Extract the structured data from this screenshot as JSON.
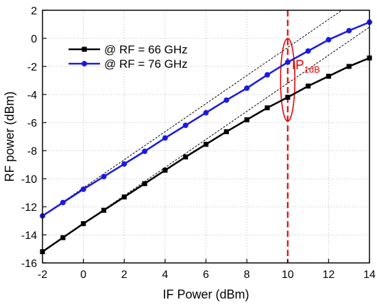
{
  "chart_data": {
    "type": "line",
    "title": "",
    "xlabel": "IF Power (dBm)",
    "ylabel": "RF power (dBm)",
    "xlim": [
      -2,
      14
    ],
    "ylim": [
      -16,
      2
    ],
    "xticks": [
      -2,
      0,
      2,
      4,
      6,
      8,
      10,
      12,
      14
    ],
    "yticks": [
      -16,
      -14,
      -12,
      -10,
      -8,
      -6,
      -4,
      -2,
      0,
      2
    ],
    "grid": true,
    "legend_position": "top-left",
    "x": [
      -2,
      -1,
      0,
      1,
      2,
      3,
      4,
      5,
      6,
      7,
      8,
      9,
      10,
      11,
      12,
      13,
      14
    ],
    "series": [
      {
        "name": "@ RF = 66 GHz",
        "color": "#000000",
        "marker": "square",
        "values": [
          -15.2,
          -14.2,
          -13.2,
          -12.25,
          -11.3,
          -10.35,
          -9.4,
          -8.45,
          -7.55,
          -6.65,
          -5.8,
          -4.95,
          -4.2,
          -3.4,
          -2.7,
          -2.0,
          -1.4
        ]
      },
      {
        "name": "@ RF = 76 GHz",
        "color": "#1a1ae6",
        "marker": "circle",
        "values": [
          -12.65,
          -11.7,
          -10.75,
          -9.85,
          -8.95,
          -8.05,
          -7.1,
          -6.2,
          -5.3,
          -4.4,
          -3.55,
          -2.6,
          -1.7,
          -0.9,
          -0.1,
          0.55,
          1.15
        ]
      }
    ],
    "reference_lines": [
      {
        "x1": -2,
        "y1": -15.2,
        "x2": 14,
        "y2": 0.8,
        "style": "dashed",
        "color": "#000000"
      },
      {
        "x1": -2,
        "y1": -12.65,
        "x2": 14,
        "y2": 3.35,
        "style": "dashed",
        "color": "#000000"
      }
    ],
    "annotations": {
      "vline_x": 10,
      "vline_color": "#e60000",
      "ellipse_center": [
        10,
        -2.95
      ],
      "ellipse_rx": 0.35,
      "ellipse_ry": 2.95,
      "label_main": "IP",
      "label_sub": "1dB",
      "label_at": [
        10.2,
        -2.2
      ]
    }
  }
}
